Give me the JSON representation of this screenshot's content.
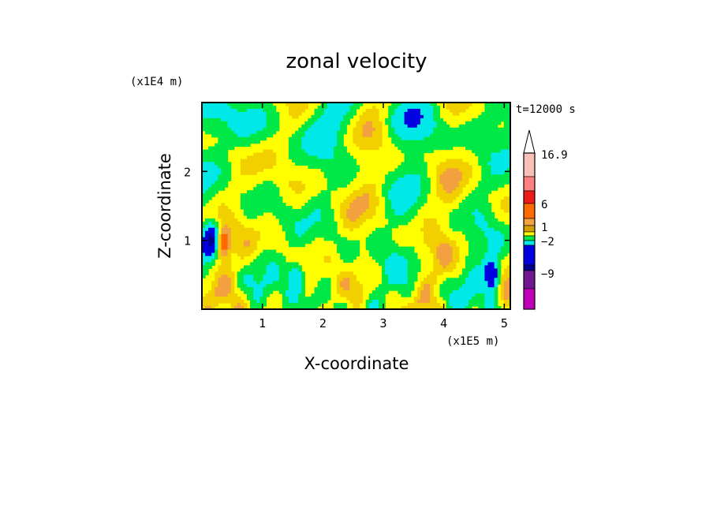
{
  "chart_data": {
    "type": "heatmap",
    "title": "zonal velocity",
    "xlabel": "X-coordinate",
    "ylabel": "Z-coordinate",
    "x_scale_label": "(x1E5 m)",
    "y_scale_label": "(x1E4 m)",
    "time_label": "t=12000 s",
    "xlim": [
      0,
      5.1
    ],
    "ylim": [
      0,
      3
    ],
    "x_ticks": [
      {
        "value": 1,
        "label": "1"
      },
      {
        "value": 2,
        "label": "2"
      },
      {
        "value": 3,
        "label": "3"
      },
      {
        "value": 4,
        "label": "4"
      },
      {
        "value": 5,
        "label": "5"
      }
    ],
    "y_ticks": [
      {
        "value": 1,
        "label": "1"
      },
      {
        "value": 2,
        "label": "2"
      }
    ],
    "colorbar": {
      "labeled_levels": [
        {
          "value": 16.9,
          "label": "16.9"
        },
        {
          "value": 6,
          "label": "6"
        },
        {
          "value": 1,
          "label": "1"
        },
        {
          "value": -2,
          "label": "−2"
        },
        {
          "value": -9,
          "label": "−9"
        }
      ],
      "colors_top_to_bottom": [
        "#f9c0b8",
        "#ff8080",
        "#ee1a1a",
        "#ff6a00",
        "#f2a040",
        "#d4a000",
        "#ffff00",
        "#00e846",
        "#00e8e8",
        "#0000e0",
        "#000090",
        "#701890",
        "#c000b8",
        "#ff00a8"
      ],
      "max_arrow_color": "#ffffff"
    },
    "field_colors": {
      "background": "#ffff00",
      "positive_small": "#f2d000",
      "positive_mid": "#f2a040",
      "positive_high": "#ff6a00",
      "positive_peak": "#ee1a1a",
      "negative_small": "#00e846",
      "negative_mid": "#00e8e8",
      "negative_strong": "#0000e0",
      "negative_peak": "#000090"
    },
    "dominant_features": [
      {
        "description": "strong westward (blue) jet near left boundary",
        "x": 0.15,
        "z": 1.0,
        "value": -9
      },
      {
        "description": "strong positive core next to it",
        "x": 0.35,
        "z": 0.95,
        "value": 6
      },
      {
        "description": "negative column near right boundary",
        "x": 4.8,
        "z": 0.5,
        "value": -9
      },
      {
        "description": "negative column near center-left",
        "x": 1.55,
        "z": 0.5,
        "value": -5
      }
    ],
    "grid": false
  }
}
